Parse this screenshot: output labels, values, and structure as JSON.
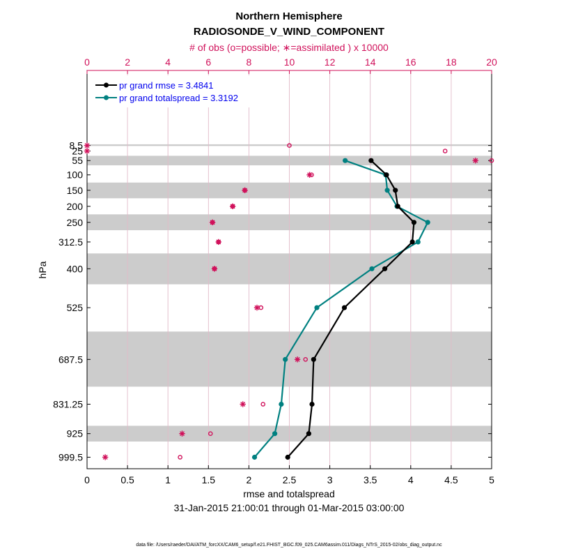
{
  "chart_data": {
    "type": "line",
    "title": "Northern Hemisphere",
    "subtitle": "RADIOSONDE_V_WIND_COMPONENT",
    "top_axis_label": "# of obs (o=possible; ∗=assimilated ) x 10000",
    "xlabel": "rmse and totalspread",
    "ylabel": "hPa",
    "date_range": "31-Jan-2015 21:00:01 through 01-Mar-2015 03:00:00",
    "footnote": "data file: /Users/raeder/DAI/ATM_forcXX/CAM6_setup/f.e21.FHIST_BGC.f09_025.CAM6assim.011/Diags_NTrS_2015-02/obs_diag_output.nc",
    "xlim": [
      0,
      5
    ],
    "x_ticks": [
      0,
      0.5,
      1,
      1.5,
      2,
      2.5,
      3,
      3.5,
      4,
      4.5,
      5
    ],
    "x_tick_labels": [
      "0",
      "0.5",
      "1",
      "1.5",
      "2",
      "2.5",
      "3",
      "3.5",
      "4",
      "4.5",
      "5"
    ],
    "top_xlim": [
      0,
      20
    ],
    "top_ticks": [
      0,
      2,
      4,
      6,
      8,
      10,
      12,
      14,
      16,
      18,
      20
    ],
    "top_tick_labels": [
      "0",
      "2",
      "4",
      "6",
      "8",
      "10",
      "12",
      "14",
      "16",
      "18",
      "20"
    ],
    "levels": [
      8.5,
      25,
      55,
      100,
      150,
      200,
      250,
      312.5,
      400,
      525,
      687.5,
      831.25,
      925,
      999.5
    ],
    "level_labels": [
      "8.5",
      "25",
      "55",
      "100",
      "150",
      "200",
      "250",
      "312.5",
      "400",
      "525",
      "687.5",
      "831.25",
      "925",
      "999.5"
    ],
    "shaded_bands_hPa": [
      [
        5,
        10
      ],
      [
        40,
        70
      ],
      [
        125,
        175
      ],
      [
        225,
        275
      ],
      [
        350,
        450
      ],
      [
        600,
        775
      ],
      [
        900,
        950
      ]
    ],
    "series": [
      {
        "name": "rmse",
        "legend": "pr grand rmse = 3.4841",
        "color": "#000000",
        "levels": [
          55,
          100,
          150,
          200,
          250,
          312.5,
          400,
          525,
          687.5,
          831.25,
          925,
          999.5
        ],
        "values": [
          3.51,
          3.7,
          3.81,
          3.84,
          4.04,
          4.02,
          3.68,
          3.18,
          2.8,
          2.78,
          2.74,
          2.48
        ]
      },
      {
        "name": "totalspread",
        "legend": "pr grand totalspread = 3.3192",
        "color": "#008080",
        "levels": [
          55,
          100,
          150,
          200,
          250,
          312.5,
          400,
          525,
          687.5,
          831.25,
          925,
          999.5
        ],
        "values": [
          3.19,
          3.69,
          3.71,
          3.83,
          4.21,
          4.09,
          3.52,
          2.84,
          2.45,
          2.4,
          2.32,
          2.07
        ]
      }
    ],
    "obs_possible": {
      "marker": "o",
      "color": "#d0105a",
      "levels": [
        8.5,
        25,
        55,
        100,
        150,
        200,
        250,
        312.5,
        400,
        525,
        687.5,
        831.25,
        925,
        999.5
      ],
      "values": [
        10.0,
        17.7,
        20.0,
        11.1,
        7.8,
        7.2,
        6.2,
        6.5,
        6.3,
        8.6,
        10.8,
        8.7,
        6.1,
        4.6
      ]
    },
    "obs_assimilated": {
      "marker": "*",
      "color": "#d0105a",
      "levels": [
        8.5,
        25,
        55,
        100,
        150,
        200,
        250,
        312.5,
        400,
        525,
        687.5,
        831.25,
        925,
        999.5
      ],
      "values": [
        0.0,
        0.0,
        19.2,
        11.0,
        7.8,
        7.2,
        6.2,
        6.5,
        6.3,
        8.4,
        10.4,
        7.7,
        4.7,
        0.9
      ]
    }
  }
}
